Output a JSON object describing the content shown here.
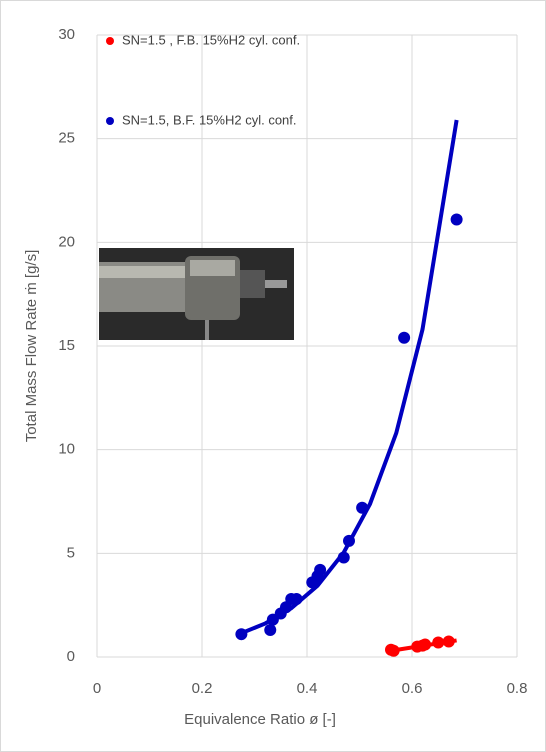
{
  "chart_data": {
    "type": "scatter",
    "xlabel": "Equivalence Ratio ø [-]",
    "ylabel": "Total Mass Flow Rate ṁ [g/s]",
    "xlim": [
      0,
      0.8
    ],
    "xticks": [
      0,
      0.2,
      0.4,
      0.6,
      0.8
    ],
    "ylim": [
      0,
      30
    ],
    "yticks": [
      0,
      5,
      10,
      15,
      20,
      25,
      30
    ],
    "grid": true,
    "legend": "upper left",
    "series": [
      {
        "name": "SN=1.5 , F.B. 15%H2 cyl. conf.",
        "color": "#ff0000",
        "x": [
          0.56,
          0.565,
          0.61,
          0.62,
          0.625,
          0.65,
          0.67
        ],
        "values": [
          0.35,
          0.3,
          0.5,
          0.55,
          0.6,
          0.7,
          0.75
        ]
      },
      {
        "name": "SN=1.5, B.F. 15%H2 cyl. conf.",
        "color": "#0000c0",
        "x": [
          0.275,
          0.33,
          0.335,
          0.35,
          0.36,
          0.37,
          0.38,
          0.41,
          0.42,
          0.425,
          0.47,
          0.48,
          0.505,
          0.585,
          0.685
        ],
        "values": [
          1.1,
          1.3,
          1.8,
          2.1,
          2.4,
          2.8,
          2.8,
          3.6,
          3.9,
          4.2,
          4.8,
          5.6,
          7.2,
          15.4,
          21.1
        ]
      }
    ],
    "trendlines": [
      {
        "color": "#ff0000",
        "x": [
          0.56,
          0.685
        ],
        "values": [
          0.3,
          0.8
        ]
      },
      {
        "color": "#0000c0",
        "x": [
          0.27,
          0.32,
          0.37,
          0.42,
          0.47,
          0.52,
          0.57,
          0.62,
          0.685
        ],
        "values": [
          1.1,
          1.61,
          2.35,
          3.44,
          5.04,
          7.38,
          10.8,
          15.8,
          25.9
        ]
      }
    ]
  }
}
